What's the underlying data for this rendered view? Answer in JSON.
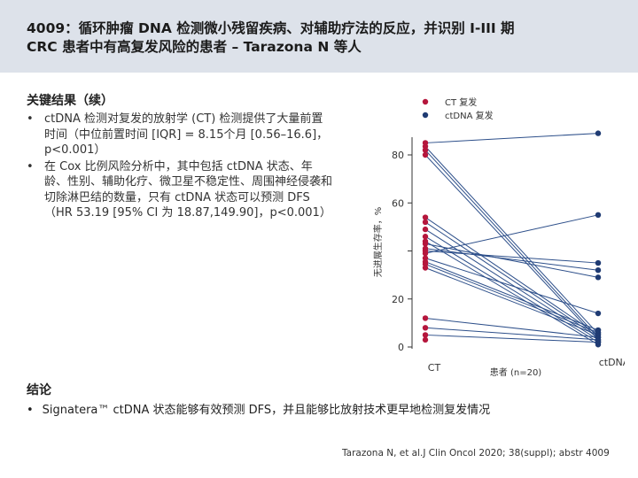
{
  "slide": {
    "title_line1": "4009：循环肿瘤 DNA 检测微小残留疾病、对辅助疗法的反应，并识别 I-III 期",
    "title_line2": "CRC 患者中有高复发风险的患者 – Tarazona N 等人",
    "key_results_heading": "关键结果（续）",
    "bullets": [
      "ctDNA 检测对复发的放射学 (CT) 检测提供了大量前置时间（中位前置时间 [IQR] = 8.15个月 [0.56–16.6]，p<0.001）",
      "在 Cox 比例风险分析中，其中包括 ctDNA 状态、年龄、性别、辅助化疗、微卫星不稳定性、周围神经侵袭和切除淋巴结的数量，只有 ctDNA 状态可以预测 DFS（HR 53.19 [95% CI 为 18.87,149.90]，p<0.001）"
    ],
    "conclusion_heading": "结论",
    "conclusion_text": "Signatera™ ctDNA 状态能够有效预测 DFS，并且能够比放射技术更早地检测复发情况",
    "citation": "Tarazona N, et al.J Clin Oncol 2020; 38(suppl); abstr 4009"
  },
  "chart_data": {
    "type": "scatter",
    "title": "",
    "ylabel": "无进展生存率，%",
    "xlabel": "患者 (n=20)",
    "categories": [
      "CT",
      "ctDNA"
    ],
    "ylim": [
      0,
      90
    ],
    "yticks": [
      0,
      20,
      40,
      60,
      80
    ],
    "ytick_labels": [
      "0",
      "20",
      "",
      "60",
      "80"
    ],
    "legend": {
      "position": "top-right",
      "items": [
        {
          "label": "CT 复发",
          "color": "#b5163c"
        },
        {
          "label": "ctDNA 复发",
          "color": "#1f3b73"
        }
      ]
    },
    "colors": {
      "ct": "#b5163c",
      "ctdna": "#1f3b73",
      "line": "#2d4f8a"
    },
    "pairs": [
      [
        85,
        89
      ],
      [
        83.5,
        5.5
      ],
      [
        82,
        4
      ],
      [
        80,
        3
      ],
      [
        54,
        5
      ],
      [
        52,
        4
      ],
      [
        49,
        3
      ],
      [
        46,
        2
      ],
      [
        44,
        1
      ],
      [
        43,
        29
      ],
      [
        41,
        32
      ],
      [
        40,
        35
      ],
      [
        39,
        55
      ],
      [
        37,
        14
      ],
      [
        35.5,
        7
      ],
      [
        34.5,
        6
      ],
      [
        33,
        5
      ],
      [
        12,
        4
      ],
      [
        8,
        3
      ],
      [
        5,
        2
      ]
    ],
    "extra_ctdna": [
      2,
      3,
      6,
      7
    ],
    "extra_ct": [
      3
    ]
  }
}
